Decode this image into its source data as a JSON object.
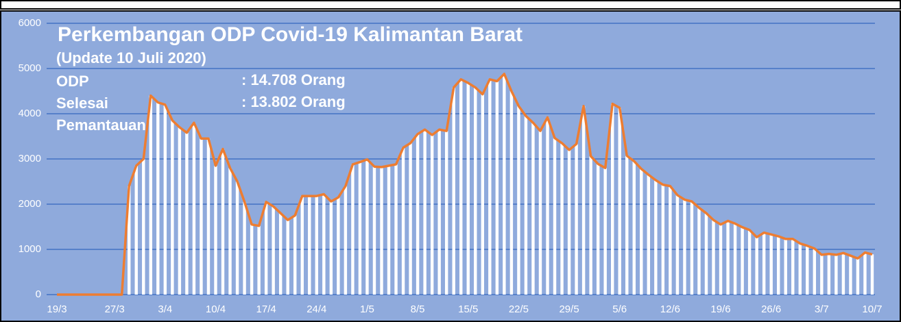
{
  "chart_data": {
    "type": "bar_line",
    "title": "Perkembangan ODP Covid-19 Kalimantan Barat",
    "subtitle": "(Update 10 Juli 2020)",
    "annotations": [
      {
        "label": "ODP",
        "text": ": 14.708 Orang"
      },
      {
        "label": "Selesai",
        "text": ": 13.802 Orang"
      },
      {
        "label": "Pemantauan",
        "text": null
      }
    ],
    "categories": [
      "19/3",
      null,
      null,
      null,
      null,
      null,
      null,
      null,
      "27/3",
      null,
      null,
      null,
      null,
      null,
      null,
      "3/4",
      null,
      null,
      null,
      null,
      null,
      null,
      "10/4",
      null,
      null,
      null,
      null,
      null,
      null,
      "17/4",
      null,
      null,
      null,
      null,
      null,
      null,
      "24/4",
      null,
      null,
      null,
      null,
      null,
      null,
      "1/5",
      null,
      null,
      null,
      null,
      null,
      null,
      "8/5",
      null,
      null,
      null,
      null,
      null,
      null,
      "15/5",
      null,
      null,
      null,
      null,
      null,
      null,
      "22/5",
      null,
      null,
      null,
      null,
      null,
      null,
      "29/5",
      null,
      null,
      null,
      null,
      null,
      null,
      "5/6",
      null,
      null,
      null,
      null,
      null,
      null,
      "12/6",
      null,
      null,
      null,
      null,
      null,
      null,
      "19/6",
      null,
      null,
      null,
      null,
      null,
      null,
      "26/6",
      null,
      null,
      null,
      null,
      null,
      null,
      "3/7",
      null,
      null,
      null,
      null,
      null,
      null,
      "10/7"
    ],
    "values": [
      0,
      0,
      0,
      0,
      0,
      0,
      0,
      0,
      0,
      0,
      2400,
      2850,
      3000,
      4400,
      4250,
      4200,
      3850,
      3700,
      3580,
      3800,
      3450,
      3450,
      2850,
      3220,
      2800,
      2500,
      2050,
      1550,
      1520,
      2050,
      1950,
      1800,
      1650,
      1750,
      2180,
      2180,
      2180,
      2220,
      2060,
      2150,
      2400,
      2880,
      2930,
      2990,
      2830,
      2820,
      2850,
      2880,
      3250,
      3350,
      3550,
      3650,
      3530,
      3650,
      3620,
      4580,
      4760,
      4680,
      4580,
      4430,
      4760,
      4720,
      4880,
      4500,
      4170,
      3950,
      3800,
      3620,
      3920,
      3460,
      3350,
      3200,
      3330,
      4170,
      3060,
      2890,
      2800,
      4220,
      4130,
      3070,
      2950,
      2780,
      2650,
      2530,
      2430,
      2400,
      2200,
      2100,
      2060,
      1920,
      1800,
      1650,
      1550,
      1630,
      1570,
      1490,
      1430,
      1270,
      1370,
      1330,
      1290,
      1230,
      1230,
      1130,
      1080,
      1020,
      880,
      900,
      880,
      920,
      860,
      800,
      930,
      890
    ],
    "bar_color": "#ffffff",
    "line_color": "#ed7d31",
    "ylim": [
      0,
      6000
    ],
    "yticks": [
      0,
      1000,
      2000,
      3000,
      4000,
      5000,
      6000
    ],
    "grid": true,
    "grid_color": "#4472c4"
  }
}
